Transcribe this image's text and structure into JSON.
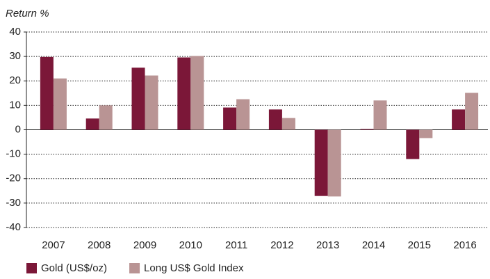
{
  "chart_data": {
    "type": "bar",
    "y_label": "Return %",
    "categories": [
      "2007",
      "2008",
      "2009",
      "2010",
      "2011",
      "2012",
      "2013",
      "2014",
      "2015",
      "2016"
    ],
    "series": [
      {
        "name": "Gold (US$/oz)",
        "color": "#7b1738",
        "values": [
          29.8,
          4.6,
          25.4,
          29.6,
          9.1,
          8.3,
          -27.1,
          0.3,
          -12,
          8.3
        ]
      },
      {
        "name": "Long US$ Gold Index",
        "color": "#b99494",
        "values": [
          21,
          10,
          22.2,
          30.2,
          12.5,
          4.8,
          -27.3,
          12,
          -3.4,
          15.1
        ]
      }
    ],
    "ylim": [
      -40,
      40
    ],
    "yticks": [
      40,
      30,
      20,
      10,
      0,
      -10,
      -20,
      -30,
      -40
    ],
    "grid": true
  }
}
